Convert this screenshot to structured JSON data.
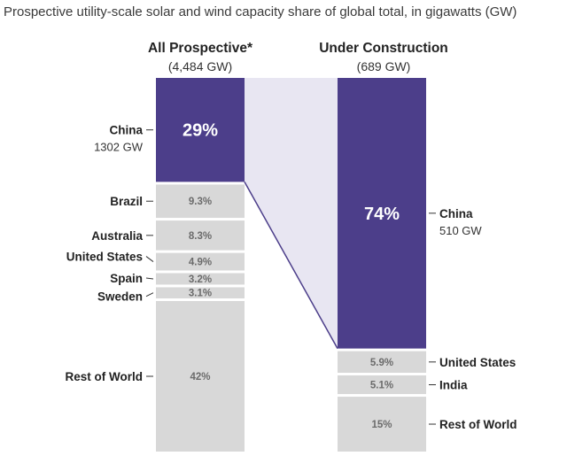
{
  "title": "Prospective utility-scale solar and wind capacity share of global total, in gigawatts (GW)",
  "colors": {
    "china": "#4c3e8a",
    "other": "#d8d8d8",
    "connector": "#e8e6f2",
    "tick": "#333333"
  },
  "chart_data": {
    "type": "stacked-bar",
    "title": "Prospective utility-scale solar and wind capacity share of global total, in gigawatts (GW)",
    "columns": [
      {
        "name": "All Prospective*",
        "total": "(4,484 GW)",
        "segments": [
          {
            "label": "China",
            "sublabel": "1302 GW",
            "value": 29,
            "display": "29%",
            "highlight": true
          },
          {
            "label": "Brazil",
            "sublabel": "",
            "value": 9.3,
            "display": "9.3%",
            "highlight": false
          },
          {
            "label": "Australia",
            "sublabel": "",
            "value": 8.3,
            "display": "8.3%",
            "highlight": false
          },
          {
            "label": "United States",
            "sublabel": "",
            "value": 4.9,
            "display": "4.9%",
            "highlight": false
          },
          {
            "label": "Spain",
            "sublabel": "",
            "value": 3.2,
            "display": "3.2%",
            "highlight": false
          },
          {
            "label": "Sweden",
            "sublabel": "",
            "value": 3.1,
            "display": "3.1%",
            "highlight": false
          },
          {
            "label": "Rest of World",
            "sublabel": "",
            "value": 42,
            "display": "42%",
            "highlight": false
          }
        ]
      },
      {
        "name": "Under Construction",
        "total": "(689 GW)",
        "segments": [
          {
            "label": "China",
            "sublabel": "510 GW",
            "value": 74,
            "display": "74%",
            "highlight": true
          },
          {
            "label": "United States",
            "sublabel": "",
            "value": 5.9,
            "display": "5.9%",
            "highlight": false
          },
          {
            "label": "India",
            "sublabel": "",
            "value": 5.1,
            "display": "5.1%",
            "highlight": false
          },
          {
            "label": "Rest of World",
            "sublabel": "",
            "value": 15,
            "display": "15%",
            "highlight": false
          }
        ]
      }
    ]
  }
}
